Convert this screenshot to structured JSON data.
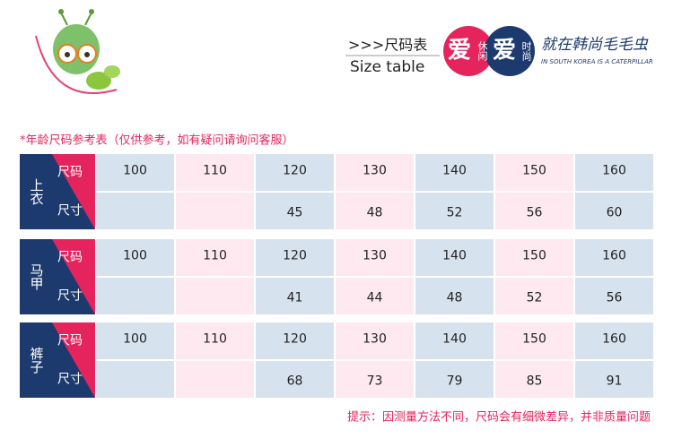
{
  "header": {
    "title_cn": ">>>尺码表",
    "title_en": "Size table",
    "brand": {
      "mark1": "爱",
      "mark1_sub": "休闲",
      "mark2": "爱",
      "mark2_sub": "时尚",
      "slogan": "就在韩尚毛毛虫",
      "slogan_en": "IN SOUTH KOREA IS A CATERPILLAR"
    }
  },
  "note": "*年龄尺码参考表（仅供参考，如有疑问请询问客服）",
  "groups": [
    {
      "label": "上衣",
      "rows": [
        {
          "label": "尺码",
          "values": [
            100,
            110,
            120,
            130,
            140,
            150,
            160
          ]
        },
        {
          "label": "尺寸",
          "values": [
            null,
            null,
            45,
            48,
            52,
            56,
            60
          ]
        }
      ]
    },
    {
      "label": "马甲",
      "rows": [
        {
          "label": "尺码",
          "values": [
            100,
            110,
            120,
            130,
            140,
            150,
            160
          ]
        },
        {
          "label": "尺寸",
          "values": [
            null,
            null,
            41,
            44,
            48,
            52,
            56
          ]
        }
      ]
    },
    {
      "label": "裤子",
      "rows": [
        {
          "label": "尺码",
          "values": [
            100,
            110,
            120,
            130,
            140,
            150,
            160
          ]
        },
        {
          "label": "尺寸",
          "values": [
            null,
            null,
            68,
            73,
            79,
            85,
            91
          ]
        }
      ]
    }
  ],
  "footer": "提示：因测量方法不同，尺码会有细微差异，并非质量问题"
}
